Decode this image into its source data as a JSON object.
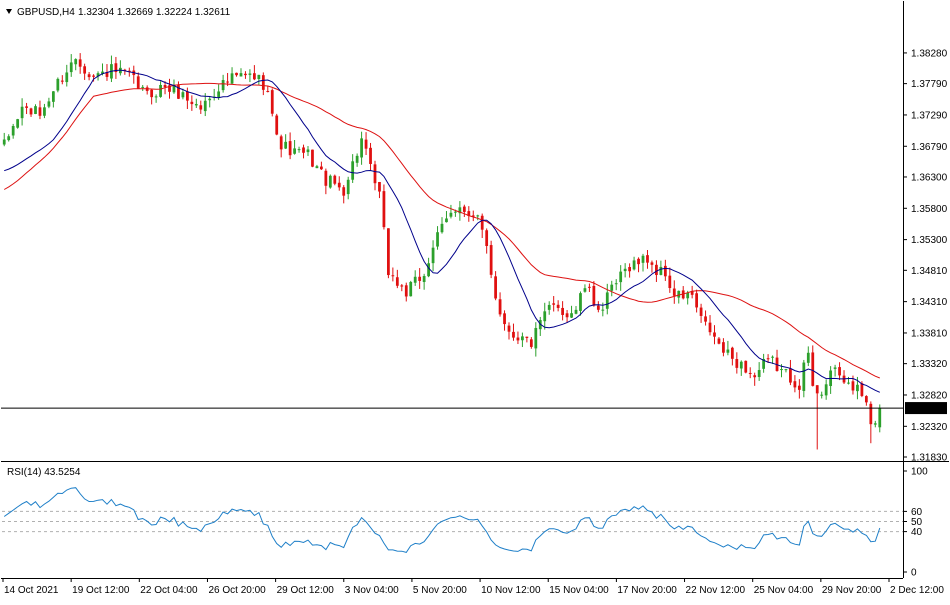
{
  "header": {
    "symbol_label": "GBPUSD,H4",
    "ohlc_text": "1.32304 1.32669 1.32224 1.32611"
  },
  "colors": {
    "bull": "#2ca02c",
    "bear": "#e01010",
    "ma_fast": "#00008b",
    "ma_slow": "#dd1111",
    "rsi": "#1e7fc8",
    "axis": "#000000",
    "grid_dash": "#b0b0b0",
    "price_label_bg": "#000000",
    "price_label_text": "#ffffff"
  },
  "chart_data": [
    {
      "type": "candlestick",
      "title": "GBPUSD,H4",
      "ylim": [
        1.3183,
        1.3863
      ],
      "y_ticks": [
        "1.38280",
        "1.37790",
        "1.37290",
        "1.36790",
        "1.36300",
        "1.35800",
        "1.35300",
        "1.34810",
        "1.34310",
        "1.33810",
        "1.33320",
        "1.32820",
        "1.32320",
        "1.31830"
      ],
      "x_ticks": [
        "14 Oct 2021",
        "19 Oct 12:00",
        "22 Oct 04:00",
        "26 Oct 20:00",
        "29 Oct 12:00",
        "3 Nov 04:00",
        "5 Nov 20:00",
        "10 Nov 12:00",
        "15 Nov 04:00",
        "17 Nov 20:00",
        "22 Nov 12:00",
        "25 Nov 04:00",
        "29 Nov 20:00",
        "2 Dec 12:00"
      ],
      "current_price": "1.32611",
      "last_candle": {
        "open": 1.32304,
        "high": 1.32669,
        "low": 1.32224,
        "close": 1.32611
      },
      "close_path": [
        [
          0,
          1.368
        ],
        [
          4,
          1.374
        ],
        [
          8,
          1.373
        ],
        [
          12,
          1.378
        ],
        [
          16,
          1.382
        ],
        [
          20,
          1.379
        ],
        [
          24,
          1.38
        ],
        [
          28,
          1.379
        ],
        [
          32,
          1.376
        ],
        [
          36,
          1.3775
        ],
        [
          40,
          1.376
        ],
        [
          44,
          1.374
        ],
        [
          48,
          1.3775
        ],
        [
          52,
          1.379
        ],
        [
          56,
          1.379
        ],
        [
          59,
          1.3775
        ],
        [
          61,
          1.369
        ],
        [
          64,
          1.367
        ],
        [
          68,
          1.3665
        ],
        [
          72,
          1.3625
        ],
        [
          76,
          1.361
        ],
        [
          80,
          1.369
        ],
        [
          82,
          1.364
        ],
        [
          84,
          1.36
        ],
        [
          86,
          1.348
        ],
        [
          88,
          1.346
        ],
        [
          90,
          1.3445
        ],
        [
          92,
          1.346
        ],
        [
          94,
          1.3475
        ],
        [
          96,
          1.352
        ],
        [
          99,
          1.356
        ],
        [
          102,
          1.359
        ],
        [
          104,
          1.3565
        ],
        [
          106,
          1.356
        ],
        [
          108,
          1.352
        ],
        [
          110,
          1.344
        ],
        [
          112,
          1.3395
        ],
        [
          114,
          1.338
        ],
        [
          116,
          1.3372
        ],
        [
          118,
          1.3365
        ],
        [
          120,
          1.3395
        ],
        [
          122,
          1.342
        ],
        [
          124,
          1.3425
        ],
        [
          126,
          1.341
        ],
        [
          128,
          1.342
        ],
        [
          130,
          1.3455
        ],
        [
          132,
          1.343
        ],
        [
          134,
          1.342
        ],
        [
          136,
          1.345
        ],
        [
          138,
          1.347
        ],
        [
          140,
          1.349
        ],
        [
          142,
          1.3495
        ],
        [
          144,
          1.35
        ],
        [
          146,
          1.348
        ],
        [
          148,
          1.3475
        ],
        [
          150,
          1.344
        ],
        [
          152,
          1.344
        ],
        [
          154,
          1.344
        ],
        [
          156,
          1.34
        ],
        [
          158,
          1.3385
        ],
        [
          160,
          1.336
        ],
        [
          162,
          1.3345
        ],
        [
          164,
          1.3335
        ],
        [
          166,
          1.3325
        ],
        [
          168,
          1.331
        ],
        [
          170,
          1.333
        ],
        [
          172,
          1.3335
        ],
        [
          174,
          1.332
        ],
        [
          176,
          1.331
        ],
        [
          178,
          1.33
        ],
        [
          180,
          1.335
        ],
        [
          181,
          1.329
        ],
        [
          183,
          1.329
        ],
        [
          185,
          1.332
        ],
        [
          187,
          1.331
        ],
        [
          189,
          1.33
        ],
        [
          191,
          1.329
        ],
        [
          193,
          1.327
        ],
        [
          194,
          1.323
        ],
        [
          195,
          1.323
        ],
        [
          196,
          1.3261
        ]
      ],
      "spikes": [
        {
          "index": 182,
          "low": 1.3195
        },
        {
          "index": 194,
          "low": 1.3205
        }
      ],
      "series": [
        {
          "kind": "ohlc",
          "count": 197
        },
        {
          "kind": "moving_average",
          "color": "#00008b",
          "start": 1.364,
          "end": 1.329
        },
        {
          "kind": "moving_average",
          "color": "#dd1111",
          "start": 1.361,
          "end": 1.3312
        }
      ]
    },
    {
      "type": "line",
      "title": "RSI(14) 43.5254",
      "ylim": [
        0,
        100
      ],
      "y_ticks": [
        "100",
        "60",
        "50",
        "40",
        "0"
      ],
      "levels": [
        60,
        50,
        40
      ],
      "current_value": 43.5254
    }
  ]
}
